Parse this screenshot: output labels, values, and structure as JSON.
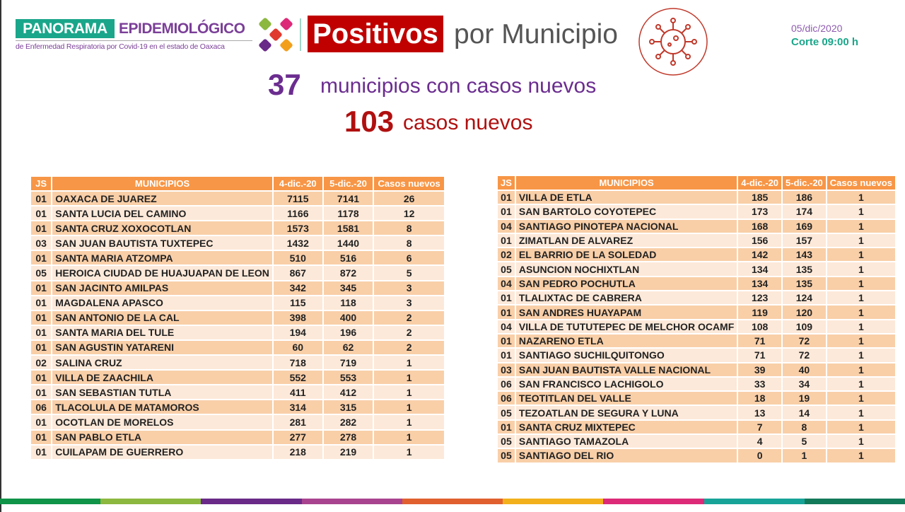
{
  "header": {
    "brand_1": "PANORAMA",
    "brand_2": "EPIDEMIOLÓGICO",
    "subtitle": "de Enfermedad Respiratoria por Covid-19 en el estado de Oaxaca",
    "title_highlight": "Positivos",
    "title_rest": "por Municipio",
    "date": "05/dic/2020",
    "cutoff": "Corte 09:00 h",
    "icon": "virus-icon"
  },
  "summary": {
    "municipios_count": "37",
    "municipios_label": "municipios con casos nuevos",
    "casos_count": "103",
    "casos_label": "casos nuevos"
  },
  "colors": {
    "header_orange": "#f79646",
    "row_dark": "#f9cfa8",
    "row_light": "#fde9d9",
    "teal": "#1aa68a",
    "purple": "#7b3f98",
    "red": "#c00000"
  },
  "columns": [
    "JS",
    "MUNICIPIOS",
    "4-dic.-20",
    "5-dic.-20",
    "Casos nuevos"
  ],
  "table_left": [
    [
      "01",
      "OAXACA DE JUAREZ",
      "7115",
      "7141",
      "26"
    ],
    [
      "01",
      "SANTA LUCIA DEL CAMINO",
      "1166",
      "1178",
      "12"
    ],
    [
      "01",
      "SANTA CRUZ XOXOCOTLAN",
      "1573",
      "1581",
      "8"
    ],
    [
      "03",
      "SAN JUAN BAUTISTA TUXTEPEC",
      "1432",
      "1440",
      "8"
    ],
    [
      "01",
      "SANTA MARIA ATZOMPA",
      "510",
      "516",
      "6"
    ],
    [
      "05",
      "HEROICA CIUDAD DE HUAJUAPAN DE LEON",
      "867",
      "872",
      "5"
    ],
    [
      "01",
      "SAN JACINTO AMILPAS",
      "342",
      "345",
      "3"
    ],
    [
      "01",
      "MAGDALENA APASCO",
      "115",
      "118",
      "3"
    ],
    [
      "01",
      "SAN ANTONIO DE LA CAL",
      "398",
      "400",
      "2"
    ],
    [
      "01",
      "SANTA MARIA DEL TULE",
      "194",
      "196",
      "2"
    ],
    [
      "01",
      "SAN AGUSTIN YATARENI",
      "60",
      "62",
      "2"
    ],
    [
      "02",
      "SALINA CRUZ",
      "718",
      "719",
      "1"
    ],
    [
      "01",
      "VILLA DE ZAACHILA",
      "552",
      "553",
      "1"
    ],
    [
      "01",
      "SAN SEBASTIAN TUTLA",
      "411",
      "412",
      "1"
    ],
    [
      "06",
      "TLACOLULA DE MATAMOROS",
      "314",
      "315",
      "1"
    ],
    [
      "01",
      "OCOTLAN DE MORELOS",
      "281",
      "282",
      "1"
    ],
    [
      "01",
      "SAN PABLO ETLA",
      "277",
      "278",
      "1"
    ],
    [
      "01",
      "CUILAPAM DE GUERRERO",
      "218",
      "219",
      "1"
    ]
  ],
  "table_right": [
    [
      "01",
      "VILLA DE ETLA",
      "185",
      "186",
      "1"
    ],
    [
      "01",
      "SAN BARTOLO COYOTEPEC",
      "173",
      "174",
      "1"
    ],
    [
      "04",
      "SANTIAGO PINOTEPA NACIONAL",
      "168",
      "169",
      "1"
    ],
    [
      "01",
      "ZIMATLAN DE ALVAREZ",
      "156",
      "157",
      "1"
    ],
    [
      "02",
      "EL BARRIO DE LA SOLEDAD",
      "142",
      "143",
      "1"
    ],
    [
      "05",
      "ASUNCION NOCHIXTLAN",
      "134",
      "135",
      "1"
    ],
    [
      "04",
      "SAN PEDRO POCHUTLA",
      "134",
      "135",
      "1"
    ],
    [
      "01",
      "TLALIXTAC DE CABRERA",
      "123",
      "124",
      "1"
    ],
    [
      "01",
      "SAN ANDRES HUAYAPAM",
      "119",
      "120",
      "1"
    ],
    [
      "04",
      "VILLA DE TUTUTEPEC DE MELCHOR OCAMF",
      "108",
      "109",
      "1"
    ],
    [
      "01",
      "NAZARENO ETLA",
      "71",
      "72",
      "1"
    ],
    [
      "01",
      "SANTIAGO SUCHILQUITONGO",
      "71",
      "72",
      "1"
    ],
    [
      "03",
      "SAN JUAN BAUTISTA VALLE NACIONAL",
      "39",
      "40",
      "1"
    ],
    [
      "06",
      "SAN FRANCISCO LACHIGOLO",
      "33",
      "34",
      "1"
    ],
    [
      "06",
      "TEOTITLAN DEL VALLE",
      "18",
      "19",
      "1"
    ],
    [
      "05",
      "TEZOATLAN DE SEGURA Y LUNA",
      "13",
      "14",
      "1"
    ],
    [
      "01",
      "SANTA CRUZ MIXTEPEC",
      "7",
      "8",
      "1"
    ],
    [
      "05",
      "SANTIAGO TAMAZOLA",
      "4",
      "5",
      "1"
    ],
    [
      "05",
      "SANTIAGO DEL RIO",
      "0",
      "1",
      "1"
    ]
  ],
  "stripe_colors": [
    "#0f9448",
    "#8cb83f",
    "#6a2a88",
    "#a8448f",
    "#e0602f",
    "#f2b01c",
    "#dc2a78",
    "#17a397",
    "#137a59"
  ]
}
